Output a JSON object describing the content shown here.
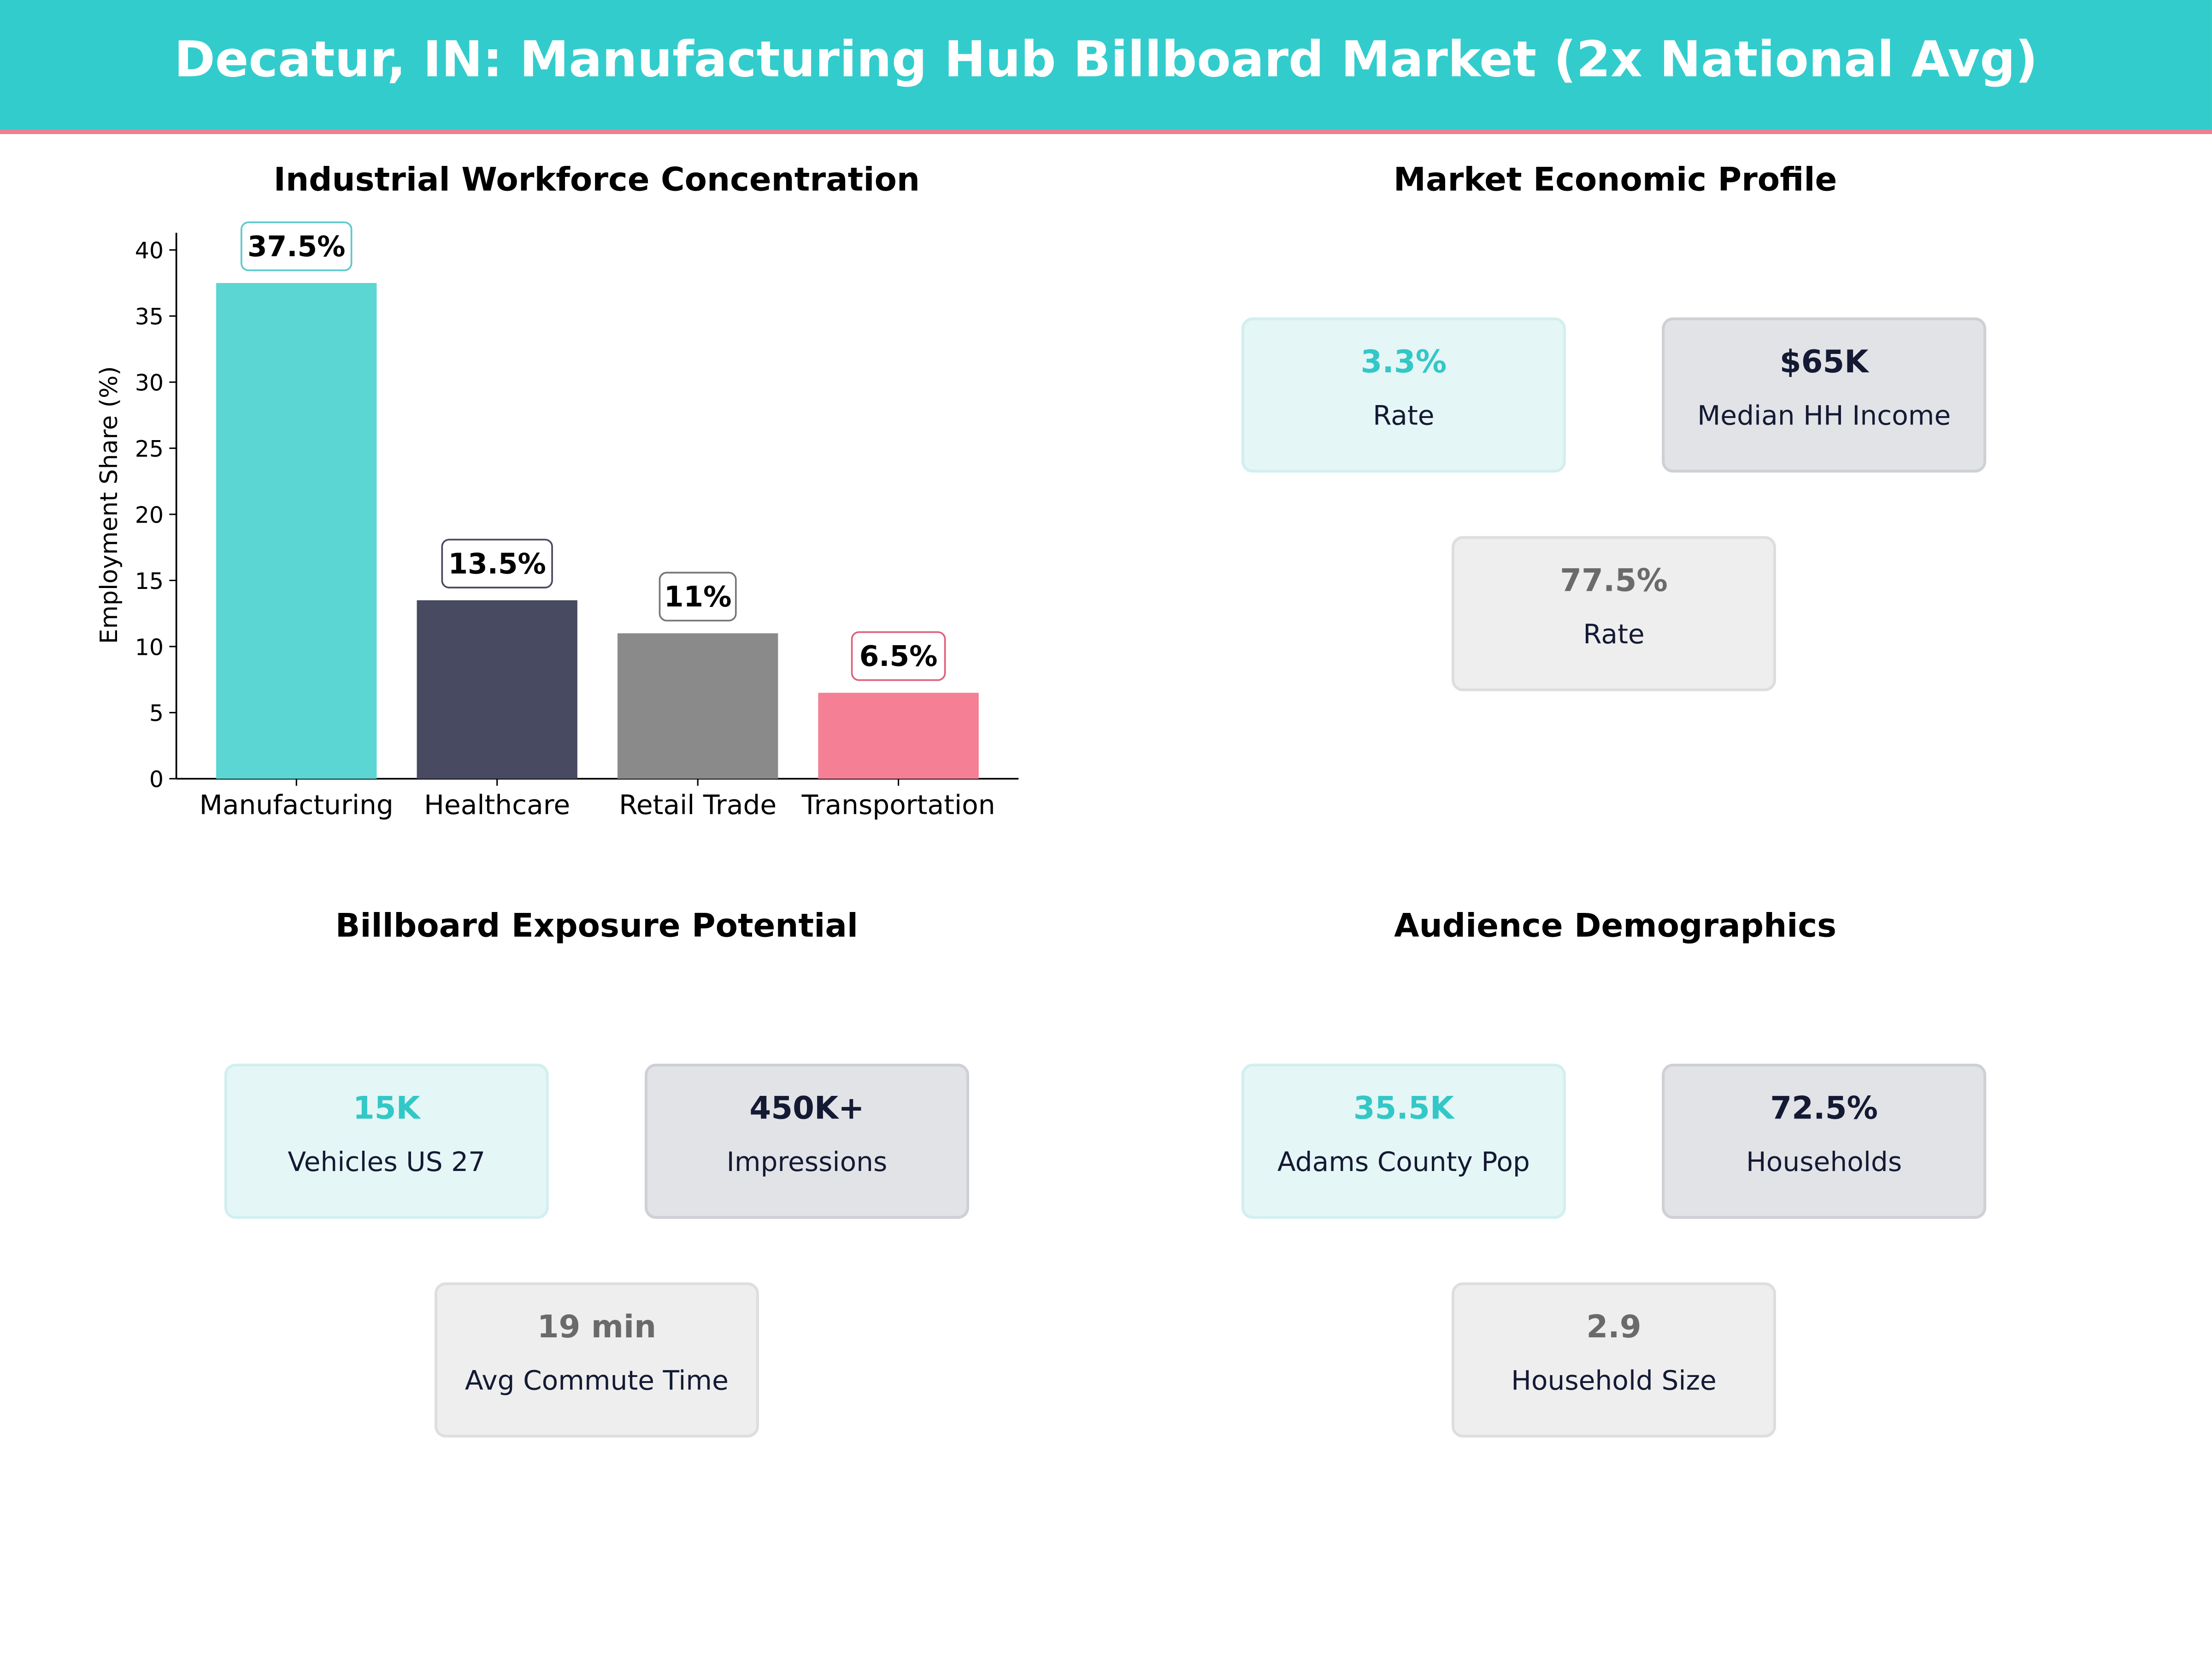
{
  "header": {
    "title": "Decatur, IN: Manufacturing Hub Billboard Market (2x National Avg)",
    "background": "#33cccc",
    "accent_line": "#f07d8f"
  },
  "panels": {
    "workforce": {
      "title": "Industrial Workforce Concentration"
    },
    "economic": {
      "title": "Market Economic Profile",
      "cards": [
        {
          "value": "3.3%",
          "label": "Rate",
          "color": "#33c7c7"
        },
        {
          "value": "$65K",
          "label": "Median HH Income",
          "color": "#141a33"
        },
        {
          "value": "77.5%",
          "label": "Rate",
          "color": "#6a6a6a"
        }
      ]
    },
    "exposure": {
      "title": "Billboard Exposure Potential",
      "cards": [
        {
          "value": "15K",
          "label": "Vehicles US 27",
          "color": "#33c7c7"
        },
        {
          "value": "450K+",
          "label": "Impressions",
          "color": "#141a33"
        },
        {
          "value": "19 min",
          "label": "Avg Commute Time",
          "color": "#6a6a6a"
        }
      ]
    },
    "demographics": {
      "title": "Audience Demographics",
      "cards": [
        {
          "value": "35.5K",
          "label": "Adams County Pop",
          "color": "#33c7c7"
        },
        {
          "value": "72.5%",
          "label": "Households",
          "color": "#141a33"
        },
        {
          "value": "2.9",
          "label": "Household Size",
          "color": "#6a6a6a"
        }
      ]
    }
  },
  "chart_data": {
    "type": "bar",
    "title": "Industrial Workforce Concentration",
    "xlabel": "",
    "ylabel": "Employment Share (%)",
    "categories": [
      "Manufacturing",
      "Healthcare",
      "Retail Trade",
      "Transportation"
    ],
    "values": [
      37.5,
      13.5,
      11,
      6.5
    ],
    "data_labels": [
      "37.5%",
      "13.5%",
      "11%",
      "6.5%"
    ],
    "colors": [
      "#5cd6d3",
      "#474a60",
      "#8a8a8a",
      "#f57f94"
    ],
    "label_border_colors": [
      "#5cc8cc",
      "#474a60",
      "#777777",
      "#e0607a"
    ],
    "ylim": [
      0,
      41.3
    ],
    "yticks": [
      0,
      5,
      10,
      15,
      20,
      25,
      30,
      35,
      40
    ],
    "grid": false,
    "legend": "none"
  }
}
